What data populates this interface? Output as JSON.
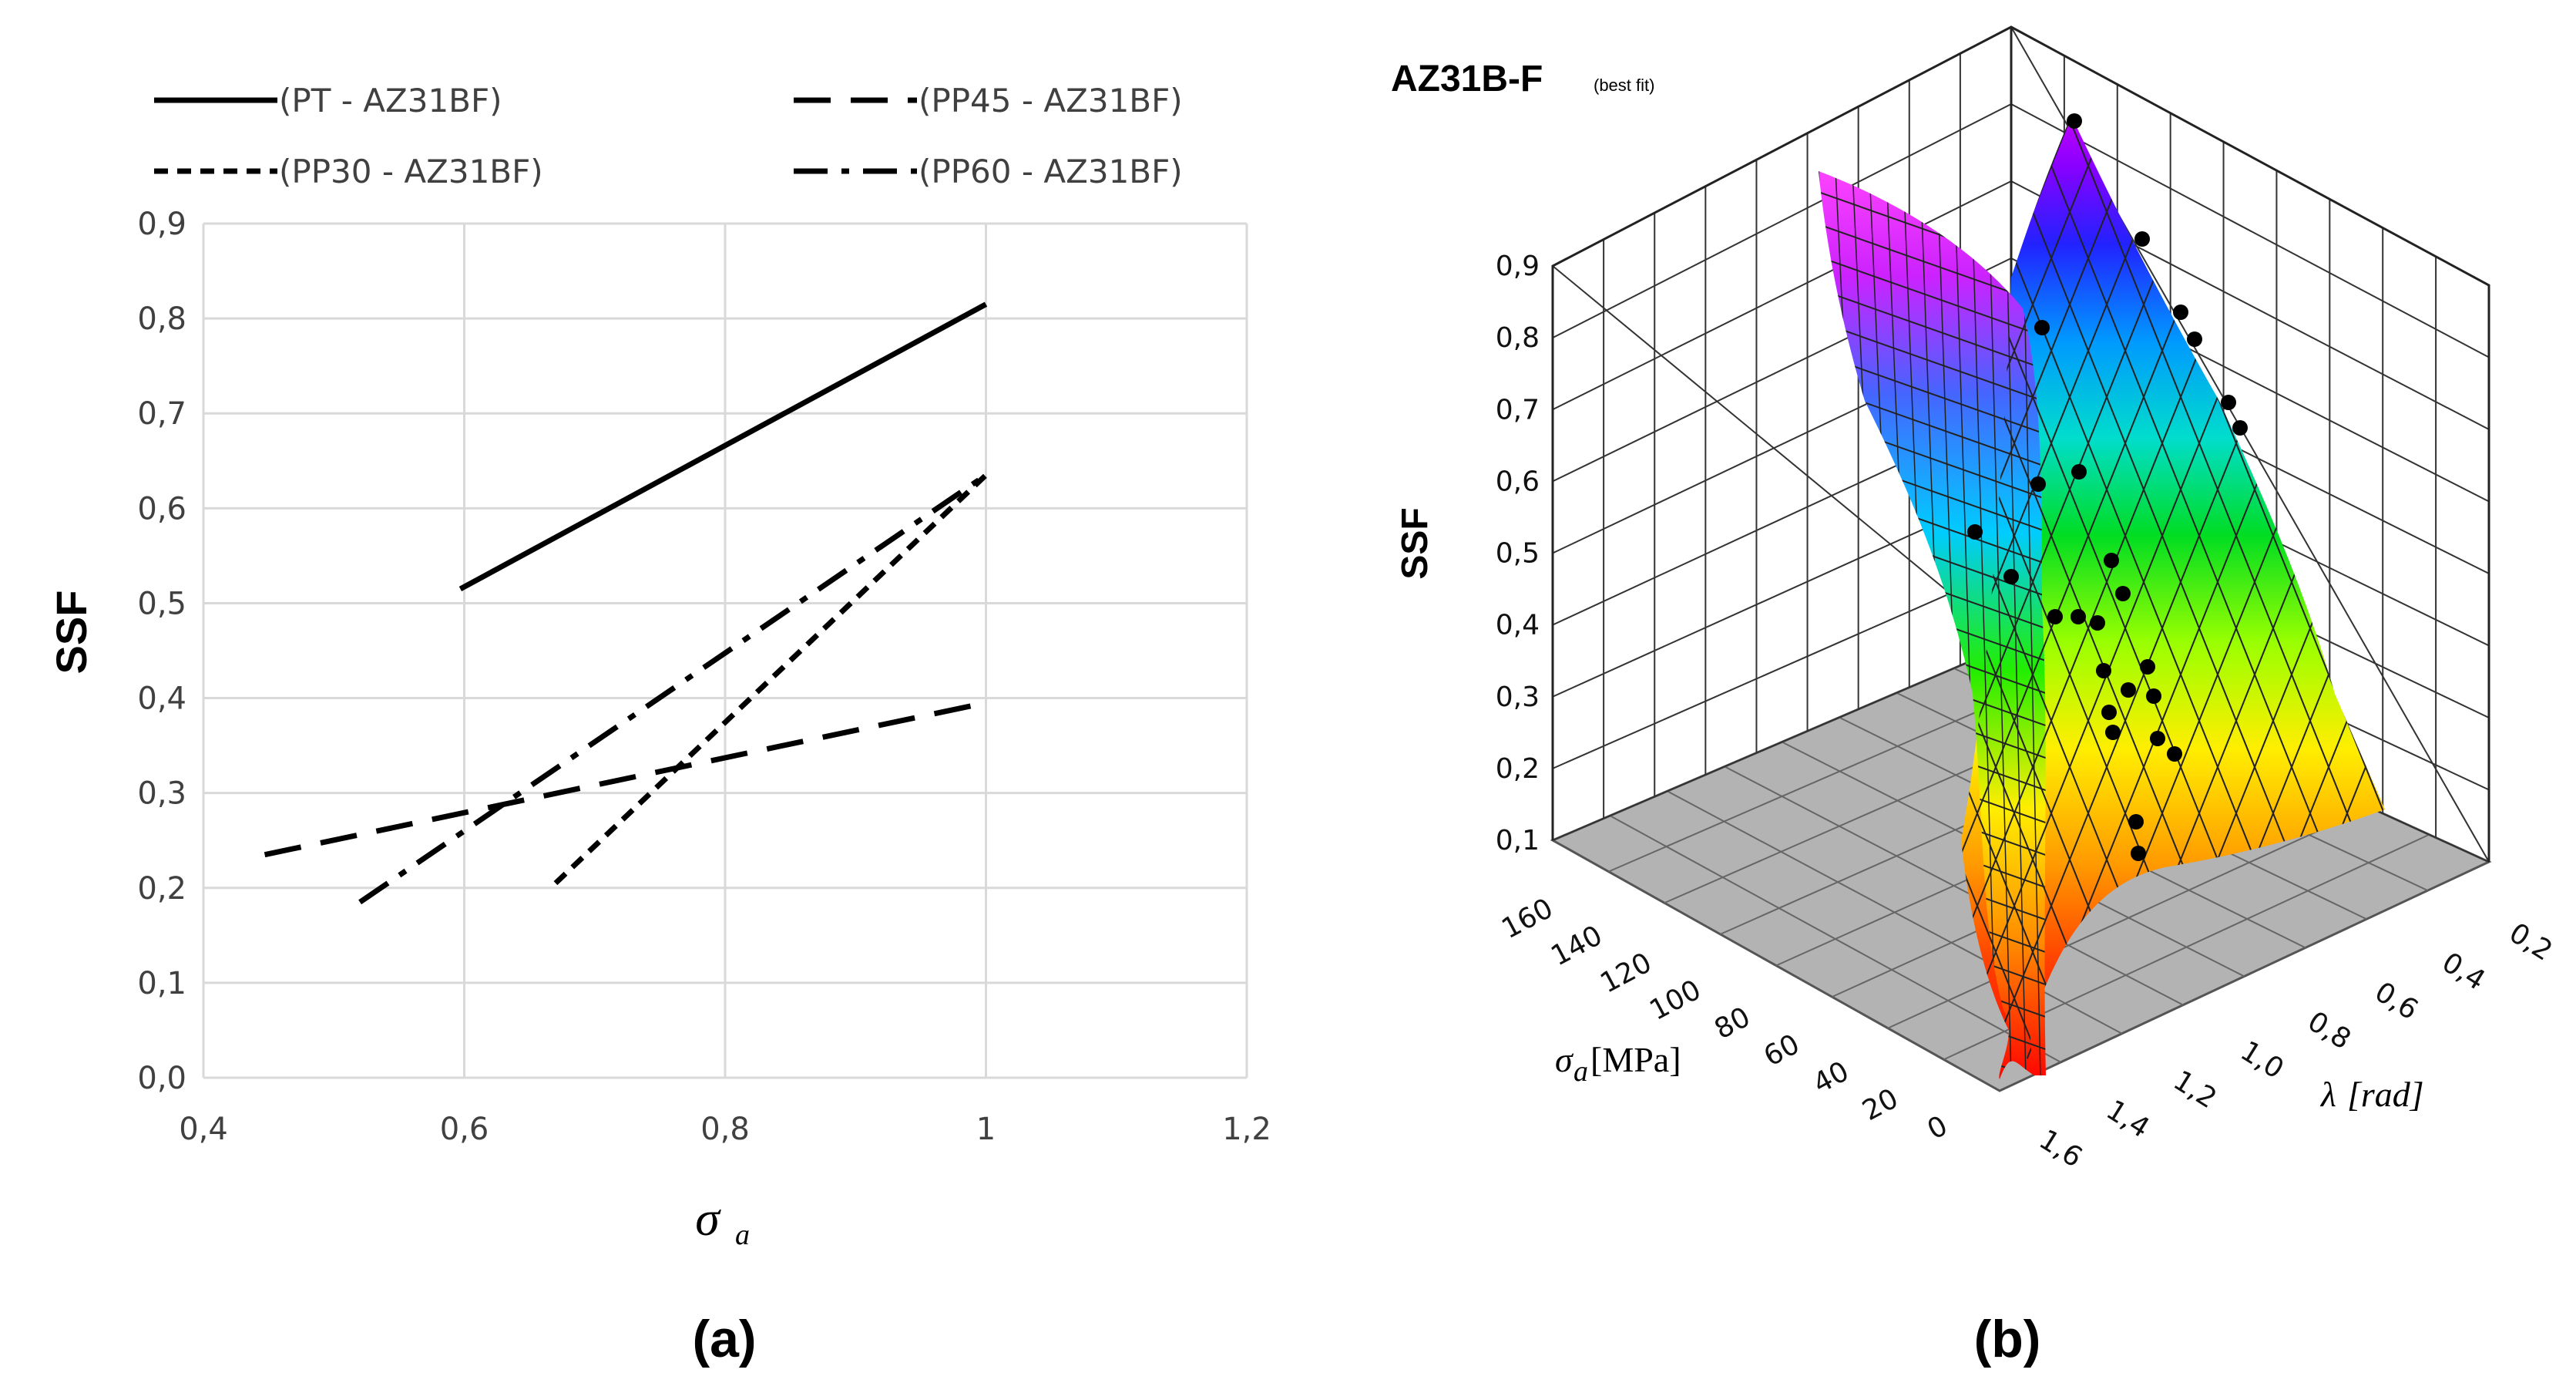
{
  "chart_data": [
    {
      "type": "line",
      "panel_label": "(a)",
      "title": "",
      "xlabel": "σ",
      "xlabel_subscript": "a",
      "ylabel": "SSF",
      "xlim": [
        0.4,
        1.2
      ],
      "ylim": [
        0.0,
        0.9
      ],
      "xticks": [
        "0,4",
        "0,6",
        "0,8",
        "1",
        "1,2"
      ],
      "yticks": [
        "0,0",
        "0,1",
        "0,2",
        "0,3",
        "0,4",
        "0,5",
        "0,6",
        "0,7",
        "0,8",
        "0,9"
      ],
      "grid": true,
      "legend_position": "top",
      "series": [
        {
          "name": "(PT - AZ31BF)",
          "style": "solid",
          "x": [
            0.597,
            1.0
          ],
          "y": [
            0.515,
            0.815
          ]
        },
        {
          "name": "(PP45 - AZ31BF)",
          "style": "long-dash",
          "x": [
            0.447,
            1.0
          ],
          "y": [
            0.235,
            0.395
          ]
        },
        {
          "name": "(PP30 - AZ31BF)",
          "style": "short-dash",
          "x": [
            0.67,
            1.0
          ],
          "y": [
            0.205,
            0.635
          ]
        },
        {
          "name": "(PP60 - AZ31BF)",
          "style": "dash-dot",
          "x": [
            0.52,
            1.0
          ],
          "y": [
            0.185,
            0.635
          ]
        }
      ]
    },
    {
      "type": "surface3d",
      "panel_label": "(b)",
      "title": "AZ31B-F",
      "title_note": "(best fit)",
      "zlabel": "SSF",
      "xlabel": "σ",
      "xlabel_subscript": "a",
      "xlabel_unit": "[MPa]",
      "ylabel": "λ",
      "ylabel_unit": "[rad]",
      "zlim": [
        0.1,
        0.9
      ],
      "zticks": [
        "0,9",
        "0,8",
        "0,7",
        "0,6",
        "0,5",
        "0,4",
        "0,3",
        "0,2",
        "0,1"
      ],
      "sigma_ticks": [
        "160",
        "140",
        "120",
        "100",
        "80",
        "60",
        "40",
        "20",
        "0"
      ],
      "lambda_ticks": [
        "0,2",
        "0,4",
        "0,6",
        "0,8",
        "1,0",
        "1,2",
        "1,4",
        "1,6"
      ],
      "colormap": "rainbow"
    }
  ]
}
